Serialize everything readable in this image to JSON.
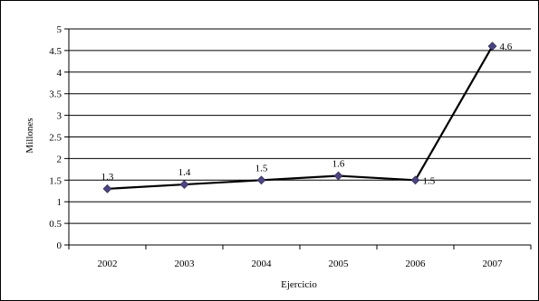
{
  "chart_data": {
    "type": "line",
    "categories": [
      "2002",
      "2003",
      "2004",
      "2005",
      "2006",
      "2007"
    ],
    "series": [
      {
        "values": [
          1.3,
          1.4,
          1.5,
          1.6,
          1.5,
          4.6
        ],
        "labels": [
          "1.3",
          "1.4",
          "1.5",
          "1.6",
          "1.5",
          "4.6"
        ]
      }
    ],
    "xlabel": "Ejercicio",
    "ylabel": "Millones",
    "ylim": [
      0,
      5
    ],
    "yticks": [
      "0",
      "0.5",
      "1",
      "1.5",
      "2",
      "2.5",
      "3",
      "3.5",
      "4",
      "4.5",
      "5"
    ],
    "grid": true,
    "line_color": "#000000",
    "marker_color": "#4a4580"
  }
}
